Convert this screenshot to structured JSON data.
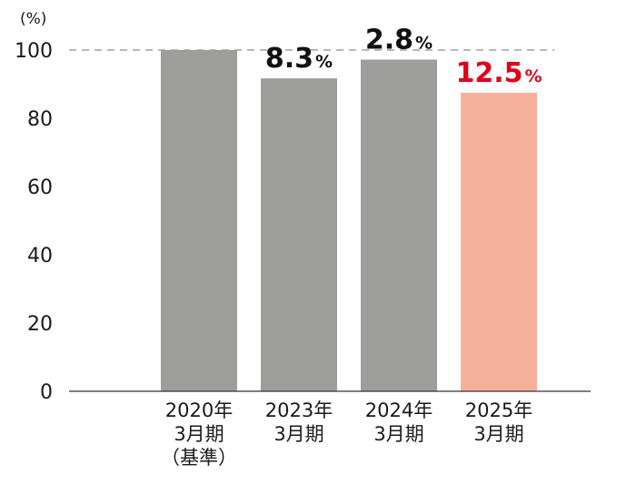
{
  "chart_data": {
    "type": "bar",
    "unit_label": "(%)",
    "categories": [
      [
        "2020年",
        "3月期",
        "（基準）"
      ],
      [
        "2023年",
        "3月期"
      ],
      [
        "2024年",
        "3月期"
      ],
      [
        "2025年",
        "3月期"
      ]
    ],
    "values": [
      100,
      91.7,
      97.2,
      87.5
    ],
    "colors": [
      "#9d9e9c",
      "#9d9e9c",
      "#9d9e9c",
      "#f4b09a"
    ],
    "data_labels": [
      null,
      {
        "number": "8.3",
        "suffix": "%",
        "color": "#111111"
      },
      {
        "number": "2.8",
        "suffix": "%",
        "color": "#111111"
      },
      {
        "number": "12.5",
        "suffix": "%",
        "color": "#e0001b"
      }
    ],
    "yticks": [
      0,
      20,
      40,
      60,
      80,
      100
    ],
    "ylim": [
      0,
      100
    ],
    "reference_line": {
      "value": 100,
      "style": "dashed",
      "color": "#a0a0a0"
    },
    "grid": false,
    "legend": false
  }
}
